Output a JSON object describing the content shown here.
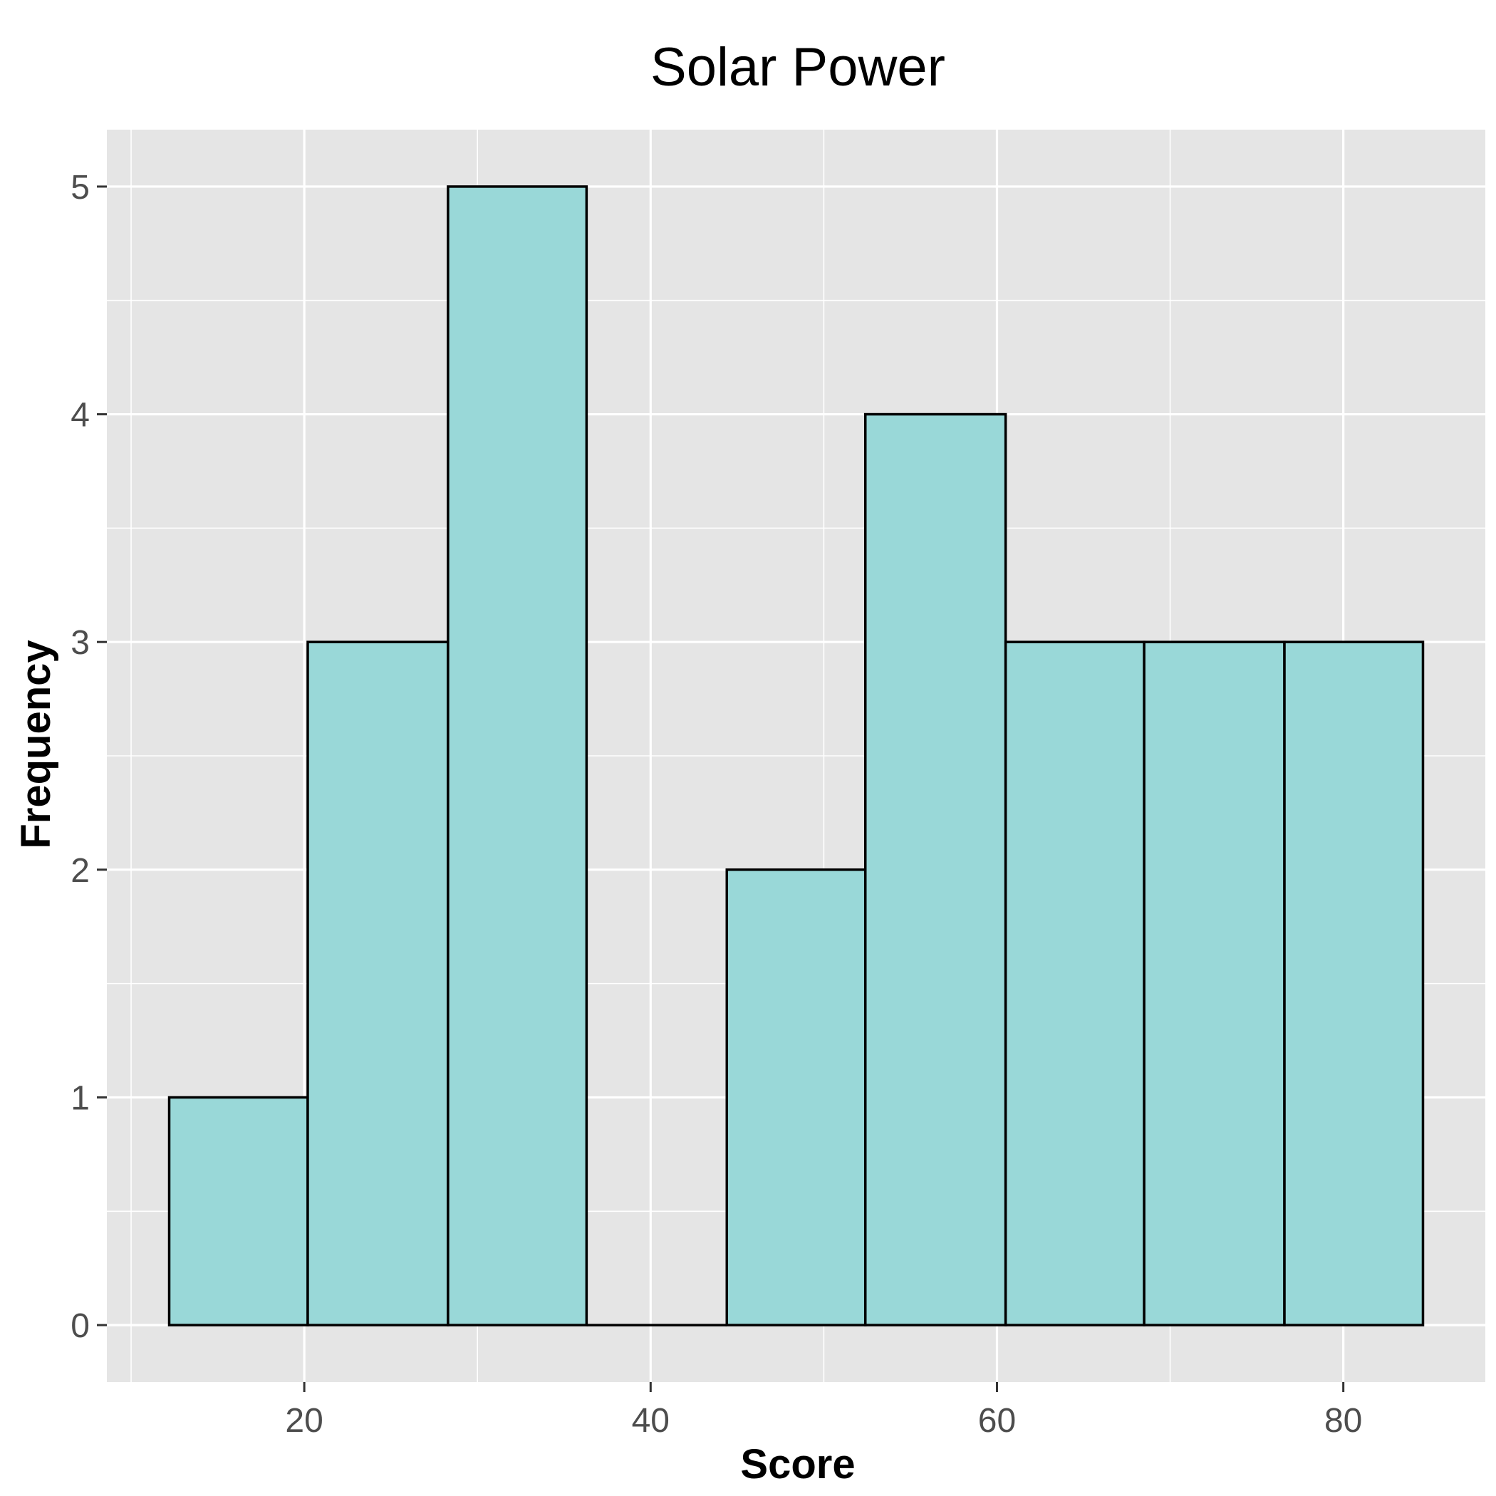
{
  "chart_data": {
    "type": "bar",
    "subtype": "histogram",
    "title": "Solar Power",
    "xlabel": "Score",
    "ylabel": "Frequency",
    "bins": [
      {
        "start": 12.2,
        "end": 20.2,
        "count": 1
      },
      {
        "start": 20.2,
        "end": 28.3,
        "count": 3
      },
      {
        "start": 28.3,
        "end": 36.3,
        "count": 5
      },
      {
        "start": 36.3,
        "end": 44.4,
        "count": 0
      },
      {
        "start": 44.4,
        "end": 52.4,
        "count": 2
      },
      {
        "start": 52.4,
        "end": 60.5,
        "count": 4
      },
      {
        "start": 60.5,
        "end": 68.5,
        "count": 3
      },
      {
        "start": 68.5,
        "end": 76.6,
        "count": 3
      },
      {
        "start": 76.6,
        "end": 84.6,
        "count": 3
      }
    ],
    "xticks": [
      20,
      40,
      60,
      80
    ],
    "yticks": [
      0,
      1,
      2,
      3,
      4,
      5
    ],
    "xlim": [
      8.6,
      88.2
    ],
    "ylim": [
      -0.25,
      5.25
    ],
    "grid": true,
    "colors": {
      "bar_fill": "#99d8d8",
      "bar_stroke": "#000000",
      "panel_background": "#e5e5e5",
      "grid": "#ffffff"
    }
  }
}
